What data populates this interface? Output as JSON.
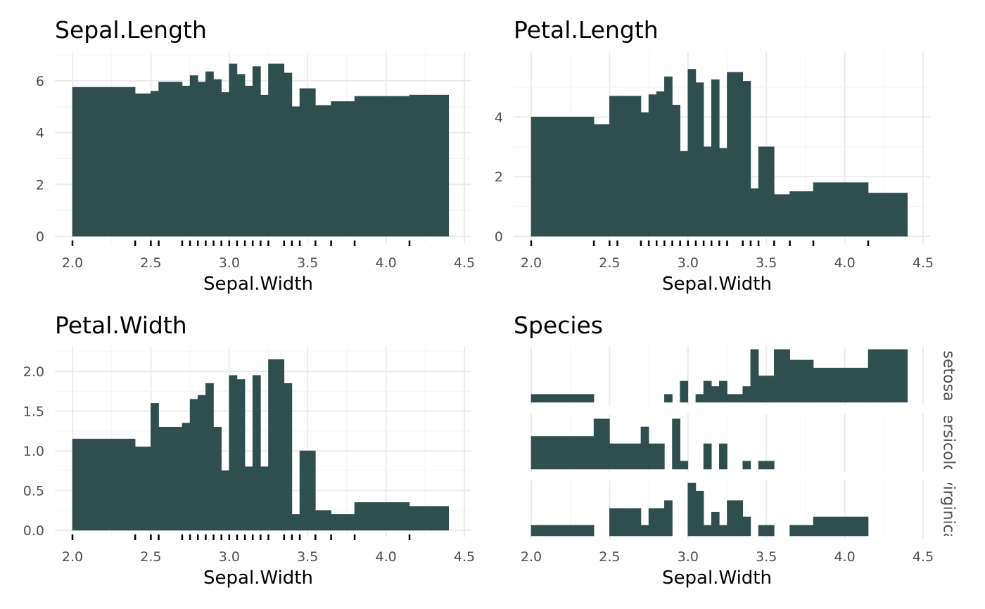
{
  "colors": {
    "bar": "#2f4f4f",
    "grid_major": "#ebebeb",
    "grid_minor": "#f5f5f5",
    "tick_text": "#4d4d4d",
    "text": "#000000",
    "rug": "#000000"
  },
  "chart_data": [
    {
      "type": "bar",
      "title": "Sepal.Length",
      "xlabel": "Sepal.Width",
      "ylabel": "",
      "xlim": [
        2.0,
        4.5
      ],
      "ylim": [
        0,
        7
      ],
      "xticks": [
        "2.0",
        "2.5",
        "3.0",
        "3.5",
        "4.0",
        "4.5"
      ],
      "yticks": [
        "0",
        "2",
        "4",
        "6"
      ],
      "grid": true,
      "rug": [
        2.0,
        2.4,
        2.5,
        2.55,
        2.7,
        2.75,
        2.8,
        2.85,
        2.9,
        2.95,
        3.0,
        3.05,
        3.1,
        3.15,
        3.2,
        3.25,
        3.35,
        3.4,
        3.45,
        3.55,
        3.65,
        3.8,
        4.15
      ],
      "bins": [
        {
          "x0": 2.0,
          "x1": 2.4,
          "y": 5.75
        },
        {
          "x0": 2.4,
          "x1": 2.5,
          "y": 5.5
        },
        {
          "x0": 2.5,
          "x1": 2.55,
          "y": 5.6
        },
        {
          "x0": 2.55,
          "x1": 2.7,
          "y": 5.95
        },
        {
          "x0": 2.7,
          "x1": 2.75,
          "y": 5.8
        },
        {
          "x0": 2.75,
          "x1": 2.8,
          "y": 6.2
        },
        {
          "x0": 2.8,
          "x1": 2.85,
          "y": 5.95
        },
        {
          "x0": 2.85,
          "x1": 2.9,
          "y": 6.35
        },
        {
          "x0": 2.9,
          "x1": 2.95,
          "y": 6.05
        },
        {
          "x0": 2.95,
          "x1": 3.0,
          "y": 5.55
        },
        {
          "x0": 3.0,
          "x1": 3.05,
          "y": 6.65
        },
        {
          "x0": 3.05,
          "x1": 3.1,
          "y": 6.25
        },
        {
          "x0": 3.1,
          "x1": 3.15,
          "y": 5.8
        },
        {
          "x0": 3.15,
          "x1": 3.2,
          "y": 6.55
        },
        {
          "x0": 3.2,
          "x1": 3.25,
          "y": 5.45
        },
        {
          "x0": 3.25,
          "x1": 3.35,
          "y": 6.65
        },
        {
          "x0": 3.35,
          "x1": 3.4,
          "y": 6.3
        },
        {
          "x0": 3.4,
          "x1": 3.45,
          "y": 5.0
        },
        {
          "x0": 3.45,
          "x1": 3.55,
          "y": 5.7
        },
        {
          "x0": 3.55,
          "x1": 3.65,
          "y": 5.05
        },
        {
          "x0": 3.65,
          "x1": 3.8,
          "y": 5.2
        },
        {
          "x0": 3.8,
          "x1": 4.15,
          "y": 5.4
        },
        {
          "x0": 4.15,
          "x1": 4.4,
          "y": 5.45
        }
      ]
    },
    {
      "type": "bar",
      "title": "Petal.Length",
      "xlabel": "Sepal.Width",
      "ylabel": "",
      "xlim": [
        2.0,
        4.5
      ],
      "ylim": [
        0,
        5.8
      ],
      "xticks": [
        "2.0",
        "2.5",
        "3.0",
        "3.5",
        "4.0",
        "4.5"
      ],
      "yticks": [
        "0",
        "2",
        "4"
      ],
      "grid": true,
      "rug": [
        2.0,
        2.4,
        2.5,
        2.55,
        2.7,
        2.75,
        2.8,
        2.85,
        2.9,
        2.95,
        3.0,
        3.05,
        3.1,
        3.15,
        3.2,
        3.25,
        3.35,
        3.4,
        3.45,
        3.55,
        3.65,
        3.8,
        4.15
      ],
      "bins": [
        {
          "x0": 2.0,
          "x1": 2.4,
          "y": 4.0
        },
        {
          "x0": 2.4,
          "x1": 2.5,
          "y": 3.75
        },
        {
          "x0": 2.5,
          "x1": 2.55,
          "y": 4.7
        },
        {
          "x0": 2.55,
          "x1": 2.7,
          "y": 4.7
        },
        {
          "x0": 2.7,
          "x1": 2.75,
          "y": 4.15
        },
        {
          "x0": 2.75,
          "x1": 2.8,
          "y": 4.75
        },
        {
          "x0": 2.8,
          "x1": 2.85,
          "y": 4.85
        },
        {
          "x0": 2.85,
          "x1": 2.9,
          "y": 5.35
        },
        {
          "x0": 2.9,
          "x1": 2.95,
          "y": 4.4
        },
        {
          "x0": 2.95,
          "x1": 3.0,
          "y": 2.85
        },
        {
          "x0": 3.0,
          "x1": 3.05,
          "y": 5.6
        },
        {
          "x0": 3.05,
          "x1": 3.1,
          "y": 5.15
        },
        {
          "x0": 3.1,
          "x1": 3.15,
          "y": 3.0
        },
        {
          "x0": 3.15,
          "x1": 3.2,
          "y": 5.25
        },
        {
          "x0": 3.2,
          "x1": 3.25,
          "y": 2.95
        },
        {
          "x0": 3.25,
          "x1": 3.35,
          "y": 5.5
        },
        {
          "x0": 3.35,
          "x1": 3.4,
          "y": 5.2
        },
        {
          "x0": 3.4,
          "x1": 3.45,
          "y": 1.6
        },
        {
          "x0": 3.45,
          "x1": 3.55,
          "y": 3.0
        },
        {
          "x0": 3.55,
          "x1": 3.65,
          "y": 1.4
        },
        {
          "x0": 3.65,
          "x1": 3.8,
          "y": 1.5
        },
        {
          "x0": 3.8,
          "x1": 4.15,
          "y": 1.8
        },
        {
          "x0": 4.15,
          "x1": 4.4,
          "y": 1.45
        }
      ]
    },
    {
      "type": "bar",
      "title": "Petal.Width",
      "xlabel": "Sepal.Width",
      "ylabel": "",
      "xlim": [
        2.0,
        4.5
      ],
      "ylim": [
        0,
        2.25
      ],
      "xticks": [
        "2.0",
        "2.5",
        "3.0",
        "3.5",
        "4.0",
        "4.5"
      ],
      "yticks": [
        "0.0",
        "0.5",
        "1.0",
        "1.5",
        "2.0"
      ],
      "grid": true,
      "rug": [
        2.0,
        2.4,
        2.5,
        2.55,
        2.7,
        2.75,
        2.8,
        2.85,
        2.9,
        2.95,
        3.0,
        3.05,
        3.1,
        3.15,
        3.2,
        3.25,
        3.35,
        3.4,
        3.45,
        3.55,
        3.65,
        3.8,
        4.15
      ],
      "bins": [
        {
          "x0": 2.0,
          "x1": 2.4,
          "y": 1.15
        },
        {
          "x0": 2.4,
          "x1": 2.5,
          "y": 1.05
        },
        {
          "x0": 2.5,
          "x1": 2.55,
          "y": 1.6
        },
        {
          "x0": 2.55,
          "x1": 2.7,
          "y": 1.3
        },
        {
          "x0": 2.7,
          "x1": 2.75,
          "y": 1.35
        },
        {
          "x0": 2.75,
          "x1": 2.8,
          "y": 1.65
        },
        {
          "x0": 2.8,
          "x1": 2.85,
          "y": 1.7
        },
        {
          "x0": 2.85,
          "x1": 2.9,
          "y": 1.85
        },
        {
          "x0": 2.9,
          "x1": 2.95,
          "y": 1.3
        },
        {
          "x0": 2.95,
          "x1": 3.0,
          "y": 0.75
        },
        {
          "x0": 3.0,
          "x1": 3.05,
          "y": 1.95
        },
        {
          "x0": 3.05,
          "x1": 3.1,
          "y": 1.9
        },
        {
          "x0": 3.1,
          "x1": 3.15,
          "y": 0.8
        },
        {
          "x0": 3.15,
          "x1": 3.2,
          "y": 1.95
        },
        {
          "x0": 3.2,
          "x1": 3.25,
          "y": 0.8
        },
        {
          "x0": 3.25,
          "x1": 3.35,
          "y": 2.15
        },
        {
          "x0": 3.35,
          "x1": 3.4,
          "y": 1.85
        },
        {
          "x0": 3.4,
          "x1": 3.45,
          "y": 0.2
        },
        {
          "x0": 3.45,
          "x1": 3.55,
          "y": 1.0
        },
        {
          "x0": 3.55,
          "x1": 3.65,
          "y": 0.25
        },
        {
          "x0": 3.65,
          "x1": 3.8,
          "y": 0.2
        },
        {
          "x0": 3.8,
          "x1": 4.15,
          "y": 0.35
        },
        {
          "x0": 4.15,
          "x1": 4.4,
          "y": 0.3
        }
      ]
    },
    {
      "type": "bar",
      "title": "Species",
      "xlabel": "Sepal.Width",
      "ylabel": "",
      "xlim": [
        2.0,
        4.5
      ],
      "xticks": [
        "2.0",
        "2.5",
        "3.0",
        "3.5",
        "4.0",
        "4.5"
      ],
      "grid": true,
      "facets": [
        {
          "label": "setosa",
          "ylim": [
            0,
            1
          ],
          "bins": [
            {
              "x0": 2.0,
              "x1": 2.4,
              "y": 0.15
            },
            {
              "x0": 2.85,
              "x1": 2.9,
              "y": 0.15
            },
            {
              "x0": 2.95,
              "x1": 3.0,
              "y": 0.4
            },
            {
              "x0": 3.05,
              "x1": 3.1,
              "y": 0.15
            },
            {
              "x0": 3.1,
              "x1": 3.15,
              "y": 0.4
            },
            {
              "x0": 3.15,
              "x1": 3.2,
              "y": 0.3
            },
            {
              "x0": 3.2,
              "x1": 3.25,
              "y": 0.4
            },
            {
              "x0": 3.25,
              "x1": 3.35,
              "y": 0.15
            },
            {
              "x0": 3.35,
              "x1": 3.4,
              "y": 0.3
            },
            {
              "x0": 3.4,
              "x1": 3.45,
              "y": 1.0
            },
            {
              "x0": 3.45,
              "x1": 3.55,
              "y": 0.5
            },
            {
              "x0": 3.55,
              "x1": 3.65,
              "y": 1.0
            },
            {
              "x0": 3.65,
              "x1": 3.8,
              "y": 0.8
            },
            {
              "x0": 3.8,
              "x1": 4.15,
              "y": 0.65
            },
            {
              "x0": 4.15,
              "x1": 4.4,
              "y": 1.0
            }
          ]
        },
        {
          "label": "versicolor",
          "ylim": [
            0,
            1
          ],
          "bins": [
            {
              "x0": 2.0,
              "x1": 2.4,
              "y": 0.62
            },
            {
              "x0": 2.4,
              "x1": 2.5,
              "y": 0.95
            },
            {
              "x0": 2.5,
              "x1": 2.7,
              "y": 0.48
            },
            {
              "x0": 2.7,
              "x1": 2.75,
              "y": 0.8
            },
            {
              "x0": 2.75,
              "x1": 2.85,
              "y": 0.48
            },
            {
              "x0": 2.9,
              "x1": 2.95,
              "y": 0.95
            },
            {
              "x0": 2.95,
              "x1": 3.0,
              "y": 0.15
            },
            {
              "x0": 3.1,
              "x1": 3.15,
              "y": 0.48
            },
            {
              "x0": 3.2,
              "x1": 3.25,
              "y": 0.48
            },
            {
              "x0": 3.35,
              "x1": 3.4,
              "y": 0.15
            },
            {
              "x0": 3.45,
              "x1": 3.55,
              "y": 0.15
            }
          ]
        },
        {
          "label": "virginica",
          "ylim": [
            0,
            1
          ],
          "bins": [
            {
              "x0": 2.0,
              "x1": 2.4,
              "y": 0.2
            },
            {
              "x0": 2.5,
              "x1": 2.7,
              "y": 0.52
            },
            {
              "x0": 2.7,
              "x1": 2.75,
              "y": 0.2
            },
            {
              "x0": 2.75,
              "x1": 2.85,
              "y": 0.52
            },
            {
              "x0": 2.85,
              "x1": 2.9,
              "y": 0.67
            },
            {
              "x0": 3.0,
              "x1": 3.05,
              "y": 1.0
            },
            {
              "x0": 3.05,
              "x1": 3.1,
              "y": 0.85
            },
            {
              "x0": 3.1,
              "x1": 3.15,
              "y": 0.2
            },
            {
              "x0": 3.15,
              "x1": 3.2,
              "y": 0.45
            },
            {
              "x0": 3.2,
              "x1": 3.25,
              "y": 0.2
            },
            {
              "x0": 3.25,
              "x1": 3.35,
              "y": 0.67
            },
            {
              "x0": 3.35,
              "x1": 3.4,
              "y": 0.36
            },
            {
              "x0": 3.45,
              "x1": 3.55,
              "y": 0.2
            },
            {
              "x0": 3.65,
              "x1": 3.8,
              "y": 0.2
            },
            {
              "x0": 3.8,
              "x1": 4.15,
              "y": 0.36
            }
          ]
        }
      ]
    }
  ]
}
